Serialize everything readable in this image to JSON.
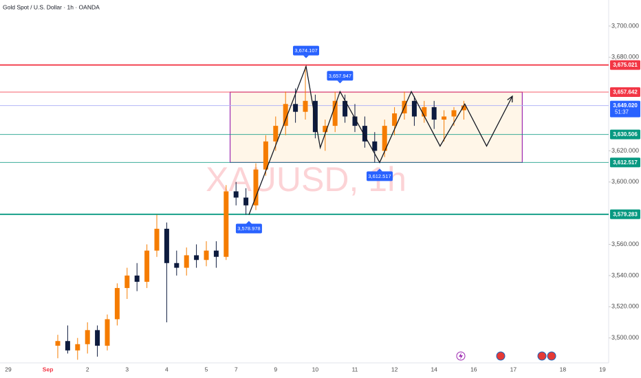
{
  "chart_data": {
    "type": "candlestick",
    "title": "Gold Spot / U.S. Dollar · 1h · OANDA",
    "watermark": "XAUUSD, 1h",
    "categories": [
      "29",
      null,
      null,
      null,
      "Sep",
      null,
      null,
      null,
      "2",
      null,
      null,
      null,
      "3",
      null,
      null,
      null,
      "4",
      null,
      null,
      null,
      "5",
      null,
      null,
      "7",
      null,
      null,
      null,
      "9",
      null,
      null,
      null,
      "10",
      null,
      null,
      null,
      "11",
      null,
      null,
      null,
      "12",
      null,
      null,
      null,
      "14",
      null,
      null,
      null,
      "16",
      null,
      null,
      null,
      "17",
      null,
      null,
      null,
      null,
      "18",
      null,
      null,
      null,
      "19"
    ],
    "open": [
      null,
      null,
      null,
      null,
      null,
      3495,
      3498,
      3492,
      3496,
      3505,
      3495,
      3512,
      3532,
      3540,
      3536,
      3556,
      3570,
      3548,
      3545,
      3553,
      3550,
      3556,
      3552,
      3594,
      3590,
      3585,
      3608,
      3626,
      3636,
      3650,
      3645,
      3652,
      3632,
      3636,
      3652,
      3642,
      3636,
      3626,
      3620,
      3636,
      3644,
      3652,
      3642,
      3648,
      3640,
      3642,
      3646,
      null,
      null,
      null,
      null,
      null,
      null,
      null,
      null,
      null,
      null,
      null,
      null,
      null,
      null
    ],
    "high": [
      null,
      null,
      null,
      null,
      null,
      3502,
      3508,
      3500,
      3510,
      3508,
      3515,
      3535,
      3545,
      3548,
      3560,
      3579,
      3574,
      3556,
      3558,
      3560,
      3562,
      3562,
      3598,
      3600,
      3596,
      3612,
      3630,
      3642,
      3658,
      3660,
      3674.107,
      3656,
      3640,
      3657.947,
      3656,
      3650,
      3642,
      3632,
      3640,
      3648,
      3658,
      3655,
      3652,
      3652,
      3646,
      3648,
      3652,
      null,
      null,
      null,
      null,
      null,
      null,
      null,
      null,
      null,
      null,
      null,
      null,
      null,
      null
    ],
    "low": [
      null,
      null,
      null,
      null,
      null,
      3487,
      3490,
      3486,
      3490,
      3488,
      3492,
      3508,
      3525,
      3530,
      3532,
      3552,
      3510,
      3540,
      3540,
      3545,
      3546,
      3545,
      3550,
      3585,
      3579,
      3582,
      3604,
      3620,
      3630,
      3638,
      3640,
      3628,
      3620,
      3632,
      3638,
      3632,
      3622,
      3612.517,
      3616,
      3630,
      3640,
      3636,
      3638,
      3634,
      3626,
      3636,
      3640,
      null,
      null,
      null,
      null,
      null,
      null,
      null,
      null,
      null,
      null,
      null,
      null,
      null,
      null
    ],
    "close": [
      null,
      null,
      null,
      null,
      null,
      3498,
      3492,
      3496,
      3505,
      3495,
      3512,
      3532,
      3540,
      3536,
      3556,
      3570,
      3548,
      3545,
      3553,
      3550,
      3556,
      3552,
      3594,
      3590,
      3585,
      3608,
      3626,
      3636,
      3650,
      3645,
      3652,
      3632,
      3636,
      3652,
      3642,
      3636,
      3626,
      3620,
      3636,
      3644,
      3652,
      3642,
      3648,
      3640,
      3642,
      3646,
      3649.02,
      null,
      null,
      null,
      null,
      null,
      null,
      null,
      null,
      null,
      null,
      null,
      null,
      null,
      null
    ],
    "up_color": "#f57c00",
    "down_color": "#0d1b3e",
    "ylim": [
      3484,
      3716.7
    ],
    "yticks": [
      {
        "value": 3700,
        "label": "3,700.000"
      },
      {
        "value": 3680,
        "label": "3,680.000"
      },
      {
        "value": 3620,
        "label": "3,620.000"
      },
      {
        "value": 3600,
        "label": "3,600.000"
      },
      {
        "value": 3560,
        "label": "3,560.000"
      },
      {
        "value": 3540,
        "label": "3,540.000"
      },
      {
        "value": 3520,
        "label": "3,520.000"
      },
      {
        "value": 3500,
        "label": "3,500.000"
      }
    ],
    "levels": [
      {
        "value": 3675.021,
        "label": "3,675.021",
        "color": "#f23645"
      },
      {
        "value": 3657.642,
        "label": "3,657.642",
        "color": "#f23645"
      },
      {
        "value": 3630.506,
        "label": "3,630.506",
        "color": "#089981"
      },
      {
        "value": 3612.517,
        "label": "3,612.517",
        "color": "#089981"
      },
      {
        "value": 3579.283,
        "label": "3,579.283",
        "color": "#089981"
      }
    ],
    "last_price": {
      "value": 3649.02,
      "label": "3,649.020",
      "countdown": "51:37",
      "color": "#2962ff"
    },
    "range_box": {
      "top": 3657.642,
      "bottom": 3612.517,
      "from": 22.4,
      "to": 51.9,
      "color": "#9c27b0"
    },
    "zigzag": {
      "x": [
        24.3,
        30.07,
        31.5,
        33.5,
        37.5,
        40.7,
        43.6,
        46.1,
        48.3,
        50.9
      ],
      "values": [
        3578.978,
        3674.107,
        3622,
        3657.947,
        3612.517,
        3658,
        3623,
        3650,
        3623,
        3655
      ]
    },
    "annotations": [
      {
        "x": 30.07,
        "value": 3674.107,
        "label": "3,674.107",
        "side": "above"
      },
      {
        "x": 33.5,
        "value": 3657.947,
        "label": "3,657.947",
        "side": "above"
      },
      {
        "x": 37.5,
        "value": 3612.517,
        "label": "3,612.517",
        "side": "below"
      },
      {
        "x": 24.3,
        "value": 3578.978,
        "label": "3,578.978",
        "side": "below"
      }
    ]
  }
}
